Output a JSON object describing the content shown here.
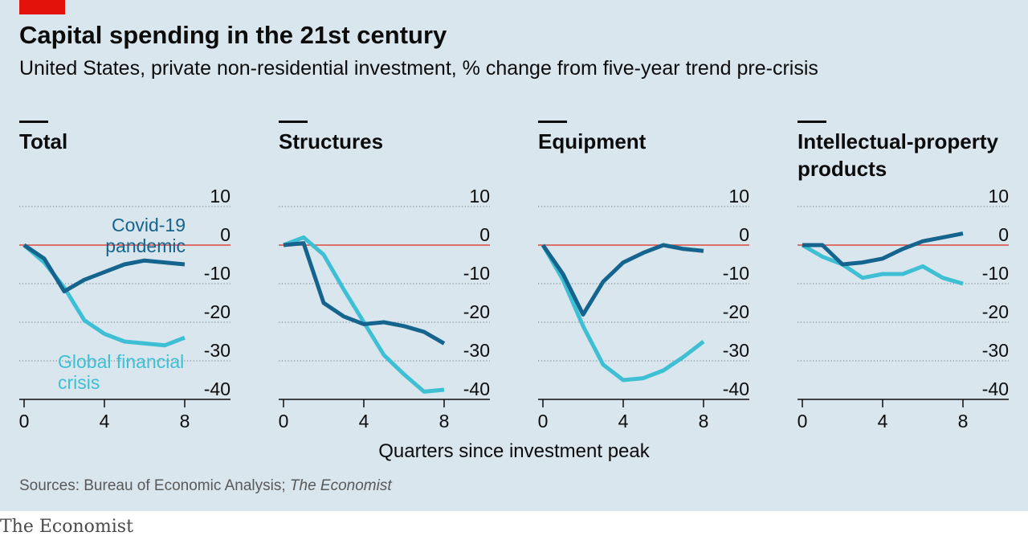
{
  "header": {
    "title": "Capital spending in the 21st century",
    "subtitle": "United States, private non-residential investment, % change from five-year trend pre-crisis"
  },
  "x_axis_title": "Quarters since investment peak",
  "source": {
    "prefix": "Sources: Bureau of Economic Analysis; ",
    "italic": "The Economist"
  },
  "brand": "The Economist",
  "colors": {
    "covid": "#15648e",
    "gfc": "#3ebfd3",
    "zero_line": "#e0483e",
    "grid": "#6b7a85",
    "background": "#d9e6ee",
    "brand_red": "#e3120b"
  },
  "annotations": {
    "covid_label": [
      "Covid-19",
      "pandemic"
    ],
    "gfc_label": [
      "Global financial",
      "crisis"
    ]
  },
  "chart_data": [
    {
      "type": "line",
      "title": [
        "Total"
      ],
      "x": [
        0,
        1,
        2,
        3,
        4,
        5,
        6,
        7,
        8
      ],
      "xticks": [
        0,
        4,
        8
      ],
      "yticks": [
        10,
        0,
        -10,
        -20,
        -30,
        -40
      ],
      "ylim": [
        -40,
        10
      ],
      "xlim": [
        0,
        8
      ],
      "series": [
        {
          "name": "Covid-19 pandemic",
          "values": [
            0,
            -3.5,
            -12,
            -9,
            -7,
            -5,
            -4,
            -4.5,
            -5
          ]
        },
        {
          "name": "Global financial crisis",
          "values": [
            0,
            -4.5,
            -11,
            -19.5,
            -23,
            -25,
            -25.5,
            -26,
            -24
          ]
        }
      ]
    },
    {
      "type": "line",
      "title": [
        "Structures"
      ],
      "x": [
        0,
        1,
        2,
        3,
        4,
        5,
        6,
        7,
        8
      ],
      "xticks": [
        0,
        4,
        8
      ],
      "yticks": [
        10,
        0,
        -10,
        -20,
        -30,
        -40
      ],
      "ylim": [
        -40,
        10
      ],
      "xlim": [
        0,
        8
      ],
      "series": [
        {
          "name": "Covid-19 pandemic",
          "values": [
            0,
            0.5,
            -15,
            -18.5,
            -20.5,
            -20,
            -21,
            -22.5,
            -25.5
          ]
        },
        {
          "name": "Global financial crisis",
          "values": [
            0,
            2,
            -2.5,
            -11.5,
            -20,
            -28.5,
            -33.5,
            -38,
            -37.5
          ]
        }
      ]
    },
    {
      "type": "line",
      "title": [
        "Equipment"
      ],
      "x": [
        0,
        1,
        2,
        3,
        4,
        5,
        6,
        7,
        8
      ],
      "xticks": [
        0,
        4,
        8
      ],
      "yticks": [
        10,
        0,
        -10,
        -20,
        -30,
        -40
      ],
      "ylim": [
        -40,
        10
      ],
      "xlim": [
        0,
        8
      ],
      "series": [
        {
          "name": "Covid-19 pandemic",
          "values": [
            0,
            -7.5,
            -18,
            -9.5,
            -4.5,
            -2,
            0,
            -1,
            -1.5
          ]
        },
        {
          "name": "Global financial crisis",
          "values": [
            0,
            -9,
            -21,
            -31,
            -35,
            -34.5,
            -32.5,
            -29,
            -25
          ]
        }
      ]
    },
    {
      "type": "line",
      "title": [
        "Intellectual-property",
        "products"
      ],
      "x": [
        0,
        1,
        2,
        3,
        4,
        5,
        6,
        7,
        8
      ],
      "xticks": [
        0,
        4,
        8
      ],
      "yticks": [
        10,
        0,
        -10,
        -20,
        -30,
        -40
      ],
      "ylim": [
        -40,
        10
      ],
      "xlim": [
        0,
        8
      ],
      "series": [
        {
          "name": "Covid-19 pandemic",
          "values": [
            0,
            0,
            -5,
            -4.5,
            -3.5,
            -1,
            1,
            2,
            3
          ]
        },
        {
          "name": "Global financial crisis",
          "values": [
            0,
            -3,
            -5,
            -8.5,
            -7.5,
            -7.5,
            -5.5,
            -8.5,
            -10
          ]
        }
      ]
    }
  ]
}
